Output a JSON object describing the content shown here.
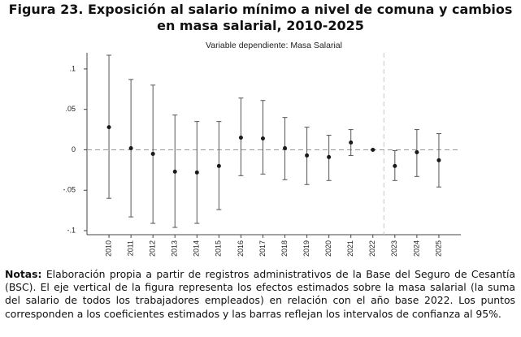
{
  "chart_data": {
    "type": "errorbar",
    "title": "Figura 23.  Exposición al salario mínimo a nivel de comuna y cambios en masa salarial, 2010-2025",
    "subtitle": "Variable dependiente: Masa Salarial",
    "x": [
      2010,
      2011,
      2012,
      2013,
      2014,
      2015,
      2016,
      2017,
      2018,
      2019,
      2020,
      2021,
      2022,
      2023,
      2024,
      2025
    ],
    "series": [
      {
        "color": "#1a1a1a",
        "whisker_color": "#555555",
        "values": [
          0.028,
          0.002,
          -0.005,
          -0.027,
          -0.028,
          -0.02,
          0.015,
          0.014,
          0.002,
          -0.007,
          -0.009,
          0.009,
          0,
          -0.02,
          -0.003,
          -0.013
        ],
        "low": [
          -0.06,
          -0.083,
          -0.091,
          -0.096,
          -0.091,
          -0.074,
          -0.032,
          -0.03,
          -0.037,
          -0.043,
          -0.038,
          -0.007,
          0,
          -0.038,
          -0.033,
          -0.046
        ],
        "high": [
          0.117,
          0.087,
          0.08,
          0.043,
          0.035,
          0.035,
          0.064,
          0.061,
          0.04,
          0.028,
          0.018,
          0.025,
          0,
          -0.001,
          0.025,
          0.02
        ]
      }
    ],
    "xlim": [
      2009,
      2026
    ],
    "xticks": [
      2010,
      2011,
      2012,
      2013,
      2014,
      2015,
      2016,
      2017,
      2018,
      2019,
      2020,
      2021,
      2022,
      2023,
      2024,
      2025
    ],
    "ylim": [
      -0.105,
      0.12
    ],
    "yticks": [
      {
        "value": -0.1,
        "label": "-.1"
      },
      {
        "value": -0.05,
        "label": "-.05"
      },
      0,
      {
        "value": 0.05,
        "label": ".05"
      },
      {
        "value": 0.1,
        "label": ".1"
      }
    ],
    "hline": 0,
    "vline": 2022.5
  },
  "notes": {
    "label": "Notas:",
    "text": " Elaboración propia a partir de registros administrativos de la Base del Seguro de Cesantía (BSC). El eje vertical de la figura representa los efectos estimados sobre la masa salarial (la suma del salario de todos los trabajadores empleados) en relación con el año base 2022. Los puntos corresponden a los coeficientes estimados y las barras reflejan los intervalos de confianza al 95%."
  }
}
